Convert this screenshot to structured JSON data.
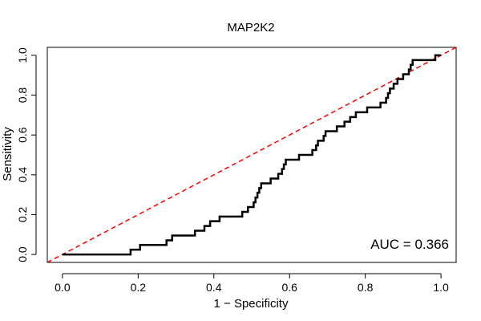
{
  "chart_data": {
    "type": "line",
    "title": "MAP2K2",
    "xlabel": "1 − Specificity",
    "ylabel": "Sensitivity",
    "xlim": [
      -0.04,
      1.04
    ],
    "ylim": [
      -0.04,
      1.04
    ],
    "x_ticks": [
      0.0,
      0.2,
      0.4,
      0.6,
      0.8,
      1.0
    ],
    "x_tick_labels": [
      "0.0",
      "0.2",
      "0.4",
      "0.6",
      "0.8",
      "1.0"
    ],
    "y_ticks": [
      0.0,
      0.2,
      0.4,
      0.6,
      0.8,
      1.0
    ],
    "y_tick_labels": [
      "0.0",
      "0.2",
      "0.4",
      "0.6",
      "0.8",
      "1.0"
    ],
    "grid": false,
    "annotation": "AUC = 0.366",
    "series": [
      {
        "color": "#000000",
        "style": "step",
        "points": [
          [
            0.0,
            0.0
          ],
          [
            0.18,
            0.0
          ],
          [
            0.18,
            0.024
          ],
          [
            0.205,
            0.024
          ],
          [
            0.205,
            0.048
          ],
          [
            0.275,
            0.048
          ],
          [
            0.275,
            0.071
          ],
          [
            0.29,
            0.071
          ],
          [
            0.29,
            0.095
          ],
          [
            0.35,
            0.095
          ],
          [
            0.35,
            0.119
          ],
          [
            0.375,
            0.119
          ],
          [
            0.375,
            0.143
          ],
          [
            0.39,
            0.143
          ],
          [
            0.39,
            0.167
          ],
          [
            0.415,
            0.167
          ],
          [
            0.415,
            0.19
          ],
          [
            0.475,
            0.19
          ],
          [
            0.475,
            0.214
          ],
          [
            0.49,
            0.214
          ],
          [
            0.49,
            0.238
          ],
          [
            0.505,
            0.238
          ],
          [
            0.505,
            0.262
          ],
          [
            0.51,
            0.262
          ],
          [
            0.51,
            0.286
          ],
          [
            0.515,
            0.286
          ],
          [
            0.515,
            0.31
          ],
          [
            0.52,
            0.31
          ],
          [
            0.52,
            0.333
          ],
          [
            0.525,
            0.333
          ],
          [
            0.525,
            0.357
          ],
          [
            0.55,
            0.357
          ],
          [
            0.55,
            0.381
          ],
          [
            0.57,
            0.381
          ],
          [
            0.57,
            0.405
          ],
          [
            0.58,
            0.405
          ],
          [
            0.58,
            0.429
          ],
          [
            0.585,
            0.429
          ],
          [
            0.585,
            0.452
          ],
          [
            0.59,
            0.452
          ],
          [
            0.59,
            0.476
          ],
          [
            0.625,
            0.476
          ],
          [
            0.625,
            0.5
          ],
          [
            0.66,
            0.5
          ],
          [
            0.66,
            0.524
          ],
          [
            0.67,
            0.524
          ],
          [
            0.67,
            0.548
          ],
          [
            0.675,
            0.548
          ],
          [
            0.675,
            0.571
          ],
          [
            0.69,
            0.571
          ],
          [
            0.69,
            0.595
          ],
          [
            0.695,
            0.595
          ],
          [
            0.695,
            0.619
          ],
          [
            0.725,
            0.619
          ],
          [
            0.725,
            0.643
          ],
          [
            0.745,
            0.643
          ],
          [
            0.745,
            0.667
          ],
          [
            0.76,
            0.667
          ],
          [
            0.76,
            0.69
          ],
          [
            0.775,
            0.69
          ],
          [
            0.775,
            0.714
          ],
          [
            0.805,
            0.714
          ],
          [
            0.805,
            0.738
          ],
          [
            0.84,
            0.738
          ],
          [
            0.84,
            0.762
          ],
          [
            0.855,
            0.762
          ],
          [
            0.855,
            0.786
          ],
          [
            0.86,
            0.786
          ],
          [
            0.86,
            0.81
          ],
          [
            0.865,
            0.81
          ],
          [
            0.865,
            0.833
          ],
          [
            0.875,
            0.833
          ],
          [
            0.875,
            0.857
          ],
          [
            0.885,
            0.857
          ],
          [
            0.885,
            0.881
          ],
          [
            0.9,
            0.881
          ],
          [
            0.9,
            0.905
          ],
          [
            0.915,
            0.905
          ],
          [
            0.915,
            0.929
          ],
          [
            0.92,
            0.929
          ],
          [
            0.92,
            0.952
          ],
          [
            0.925,
            0.952
          ],
          [
            0.925,
            0.976
          ],
          [
            0.985,
            0.976
          ],
          [
            0.985,
            1.0
          ],
          [
            1.0,
            1.0
          ]
        ]
      }
    ],
    "reference_line": {
      "points": [
        [
          -0.04,
          -0.04
        ],
        [
          1.04,
          1.04
        ]
      ],
      "color": "#ff0000",
      "style": "dashed"
    }
  }
}
